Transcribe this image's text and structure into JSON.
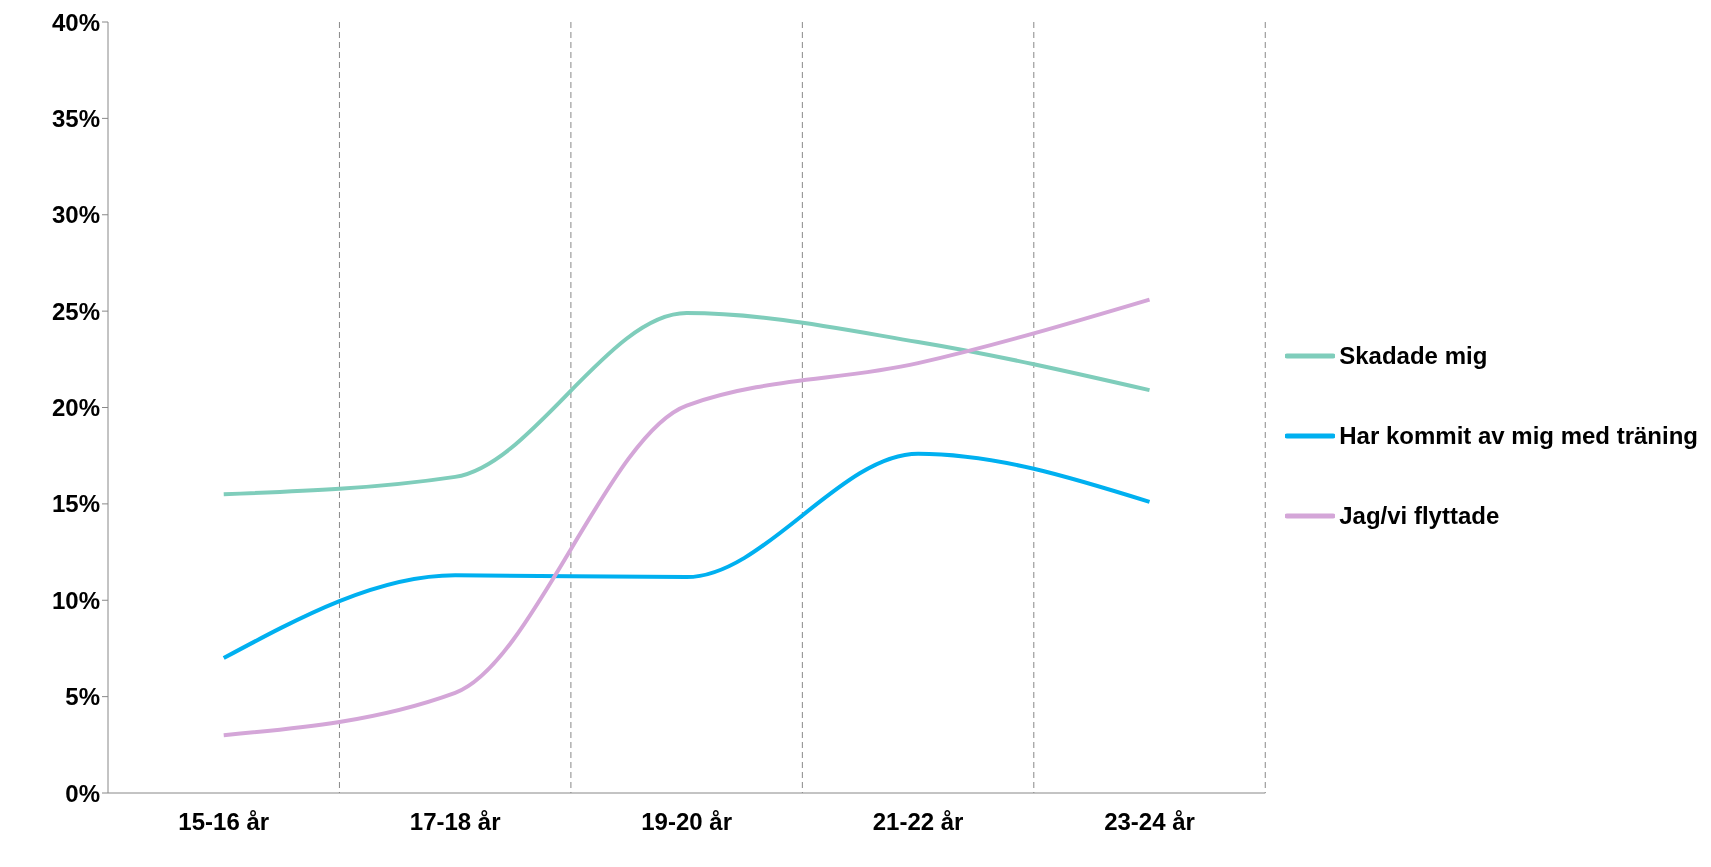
{
  "chart_data": {
    "type": "line",
    "categories": [
      "15-16 år",
      "17-18 år",
      "19-20 år",
      "21-22 år",
      "23-24 år"
    ],
    "series": [
      {
        "name": "Skadade mig",
        "color": "#7fcdbb",
        "values": [
          15.5,
          16.4,
          24.9,
          23.4,
          20.9
        ]
      },
      {
        "name": "Har kommit av mig med träning",
        "color": "#00b0f0",
        "values": [
          7.0,
          11.3,
          11.2,
          17.6,
          15.1
        ]
      },
      {
        "name": "Jag/vi flyttade",
        "color": "#d4a6d8",
        "values": [
          3.0,
          5.2,
          20.1,
          22.3,
          25.6
        ]
      }
    ],
    "ylim": [
      0,
      40
    ],
    "yticks": [
      {
        "value": 0,
        "label": "0%"
      },
      {
        "value": 5,
        "label": "5%"
      },
      {
        "value": 10,
        "label": "10%"
      },
      {
        "value": 15,
        "label": "15%"
      },
      {
        "value": 20,
        "label": "20%"
      },
      {
        "value": 25,
        "label": "25%"
      },
      {
        "value": 30,
        "label": "30%"
      },
      {
        "value": 35,
        "label": "35%"
      },
      {
        "value": 40,
        "label": "40%"
      }
    ],
    "grid": "x",
    "legend": "right",
    "marker": "none",
    "line_style": "solid"
  }
}
